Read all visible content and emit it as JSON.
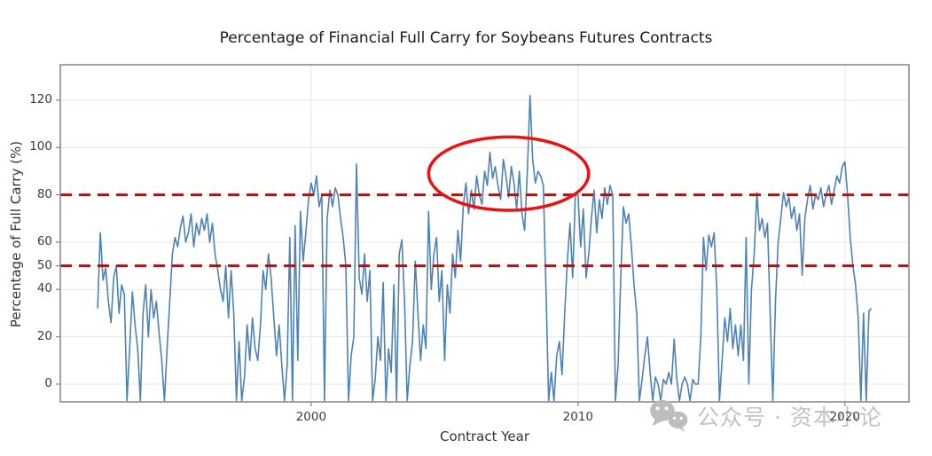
{
  "title": "Percentage of Financial Full Carry for Soybeans Futures Contracts",
  "watermark": {
    "icon": "wechat-icon",
    "text": "公众号 · 资本小论"
  },
  "chart_data": {
    "type": "line",
    "title": "Percentage of Financial Full Carry for Soybeans Futures Contracts",
    "xlabel": "Contract Year",
    "ylabel": "Percentage of Full Carry (%)",
    "xlim": [
      1990.6,
      2022.4
    ],
    "ylim": [
      -7.5,
      135
    ],
    "x_ticks": [
      2000,
      2010,
      2020
    ],
    "y_ticks": [
      0,
      20,
      40,
      50,
      60,
      80,
      100,
      120
    ],
    "grid": true,
    "grid_color": "#e7e7e7",
    "spine_color": "#8c8c8c",
    "line_color": "#4d82b4",
    "legend": "none",
    "reference_lines": [
      {
        "y": 80,
        "color": "#9e1a1a",
        "style": "dashed"
      },
      {
        "y": 50,
        "color": "#9e1a1a",
        "style": "dashed"
      }
    ],
    "annotations": [
      {
        "type": "ellipse",
        "center_x": 2007.4,
        "center_y": 89,
        "rx_x": 3.0,
        "ry_y": 15.5,
        "color": "#ee1111",
        "label": "2006-2008 high-carry period circled"
      }
    ],
    "series": [
      {
        "name": "pct_financial_full_carry",
        "x_start": 1992.0,
        "x_step": 0.1,
        "values": [
          32,
          64,
          44,
          49,
          35,
          26,
          45,
          50,
          30,
          42,
          38,
          -7,
          15,
          39,
          25,
          15,
          -7,
          30,
          42,
          20,
          40,
          28,
          35,
          22,
          10,
          -7,
          15,
          35,
          55,
          62,
          58,
          66,
          71,
          60,
          64,
          72,
          58,
          68,
          63,
          70,
          65,
          72,
          60,
          68,
          55,
          48,
          40,
          35,
          50,
          28,
          48,
          30,
          -7,
          18,
          -7,
          3,
          25,
          10,
          28,
          15,
          10,
          25,
          48,
          40,
          55,
          45,
          28,
          12,
          25,
          8,
          -7,
          8,
          62,
          -7,
          67,
          10,
          73,
          52,
          64,
          78,
          85,
          80,
          88,
          75,
          80,
          -7,
          70,
          82,
          75,
          83,
          80,
          70,
          62,
          50,
          -7,
          12,
          20,
          93,
          45,
          38,
          55,
          35,
          48,
          -7,
          2,
          20,
          10,
          43,
          -7,
          15,
          5,
          42,
          -7,
          55,
          61,
          35,
          -7,
          8,
          18,
          52,
          30,
          10,
          25,
          15,
          73,
          40,
          55,
          62,
          35,
          48,
          10,
          42,
          30,
          55,
          45,
          65,
          52,
          75,
          85,
          72,
          82,
          74,
          88,
          80,
          76,
          90,
          84,
          98,
          87,
          92,
          84,
          78,
          95,
          88,
          79,
          92,
          85,
          74,
          90,
          72,
          65,
          90,
          122,
          95,
          85,
          90,
          88,
          84,
          40,
          -7,
          5,
          -7,
          12,
          18,
          4,
          30,
          52,
          68,
          45,
          80,
          80,
          58,
          74,
          45,
          55,
          70,
          82,
          64,
          78,
          70,
          83,
          76,
          84,
          80,
          -7,
          8,
          45,
          75,
          68,
          72,
          58,
          42,
          30,
          -7,
          2,
          12,
          20,
          5,
          -7,
          3,
          0,
          -7,
          2,
          0,
          5,
          0,
          19,
          2,
          -7,
          0,
          3,
          0,
          -7,
          2,
          0,
          0,
          20,
          62,
          48,
          63,
          58,
          64,
          40,
          -7,
          10,
          28,
          18,
          32,
          15,
          25,
          12,
          25,
          10,
          62,
          0,
          40,
          55,
          81,
          65,
          70,
          62,
          68,
          30,
          -7,
          35,
          60,
          70,
          81,
          75,
          79,
          70,
          75,
          65,
          72,
          46,
          70,
          78,
          84,
          74,
          80,
          78,
          83,
          75,
          80,
          84,
          76,
          82,
          88,
          85,
          92,
          94,
          80,
          62,
          50,
          42,
          28,
          -7,
          30,
          -7,
          31,
          32
        ]
      }
    ]
  }
}
